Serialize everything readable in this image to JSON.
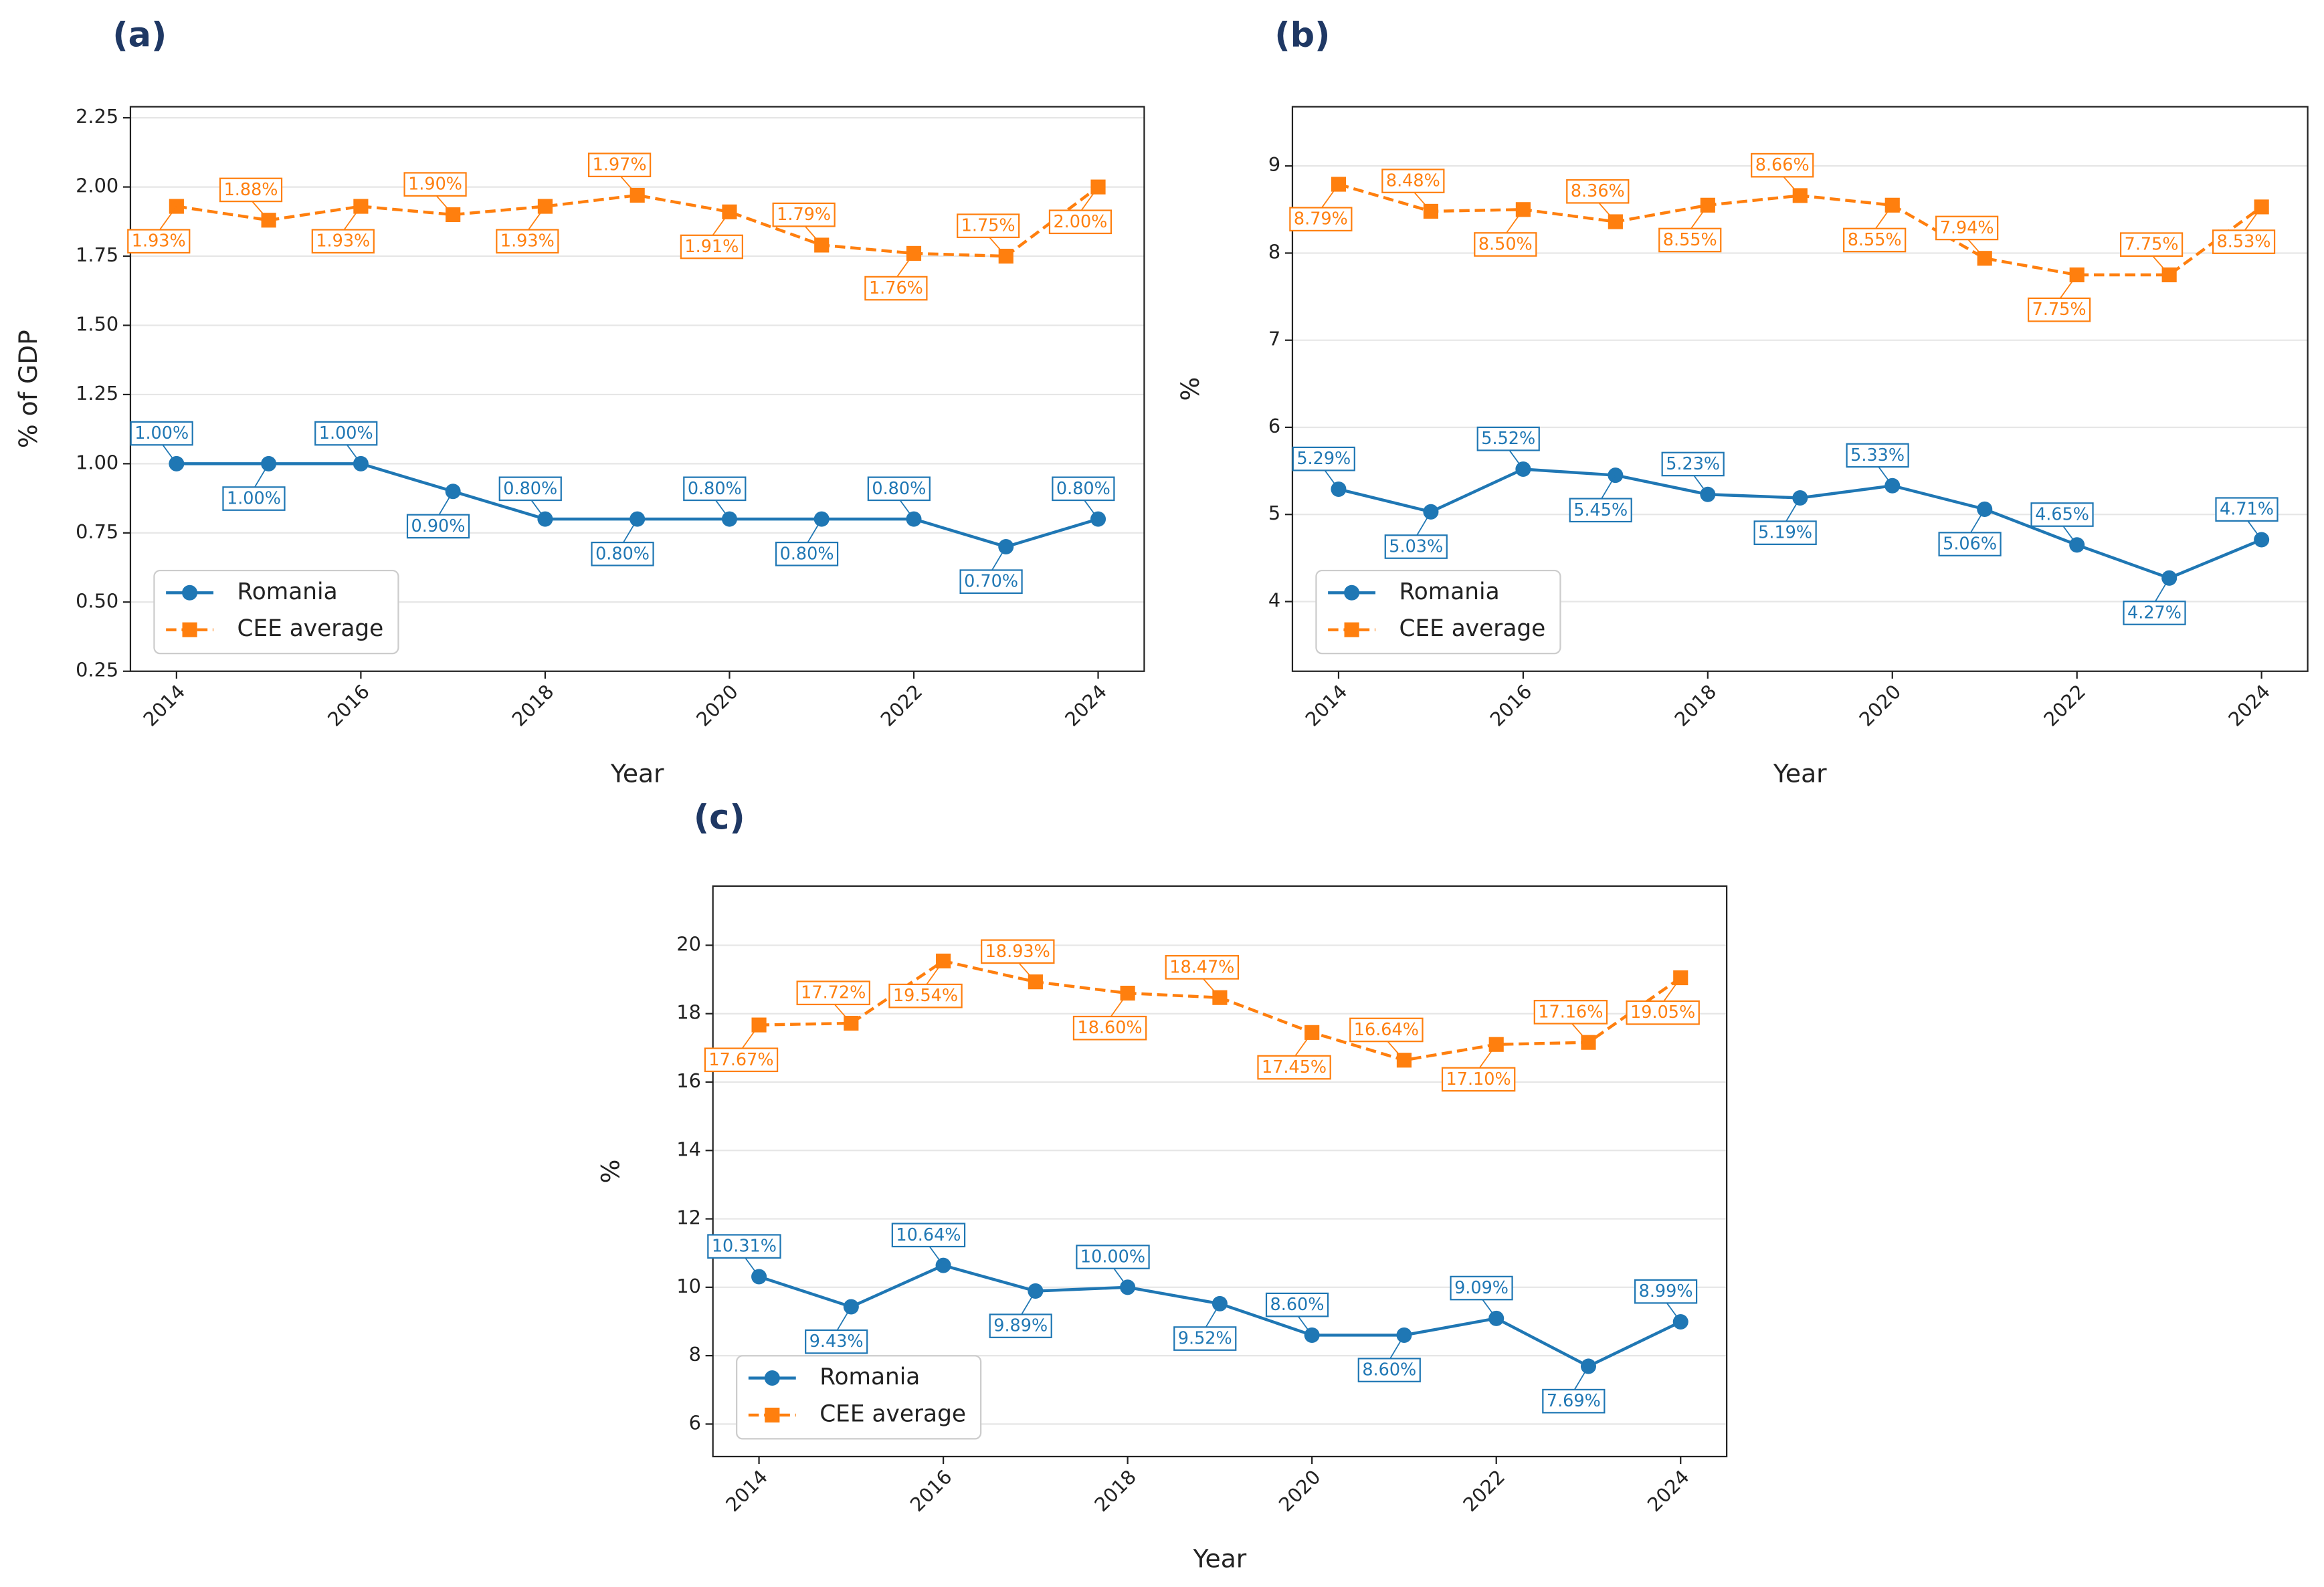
{
  "chart_data": [
    {
      "type": "line",
      "panel": "(a)",
      "xlabel": "Year",
      "ylabel": "% of GDP",
      "x": [
        2014,
        2015,
        2016,
        2017,
        2018,
        2019,
        2020,
        2021,
        2022,
        2023,
        2024
      ],
      "xlim": [
        2013.5,
        2024.5
      ],
      "xticks": [
        2014,
        2016,
        2018,
        2020,
        2022,
        2024
      ],
      "ylim": [
        0.25,
        2.29
      ],
      "yticks": [
        0.25,
        {
          "value": 0.5,
          "label": "0.50"
        },
        0.75,
        {
          "value": 1,
          "label": "1.00"
        },
        1.25,
        {
          "value": 1.5,
          "label": "1.50"
        },
        1.75,
        {
          "value": 2,
          "label": "2.00"
        },
        2.25
      ],
      "grid": true,
      "legend": "lower left",
      "series": [
        {
          "name": "Romania",
          "color": "#1f77b4",
          "linestyle": "solid",
          "marker": "circle",
          "values": [
            1.0,
            1.0,
            1.0,
            0.9,
            0.8,
            0.8,
            0.8,
            0.8,
            0.8,
            0.7,
            0.8
          ],
          "value_labels": [
            "1.00%",
            "1.00%",
            "1.00%",
            "0.90%",
            "0.80%",
            "0.80%",
            "0.80%",
            "0.80%",
            "0.80%",
            "0.70%",
            "0.80%"
          ]
        },
        {
          "name": "CEE average",
          "color": "#ff7f0e",
          "linestyle": "dashed",
          "marker": "square",
          "values": [
            1.93,
            1.88,
            1.93,
            1.9,
            1.93,
            1.97,
            1.91,
            1.79,
            1.76,
            1.75,
            2.0
          ],
          "value_labels": [
            "1.93%",
            "1.88%",
            "1.93%",
            "1.90%",
            "1.93%",
            "1.97%",
            "1.91%",
            "1.79%",
            "1.76%",
            "1.75%",
            "2.00%"
          ]
        }
      ]
    },
    {
      "type": "line",
      "panel": "(b)",
      "xlabel": "Year",
      "ylabel": "%",
      "x": [
        2014,
        2015,
        2016,
        2017,
        2018,
        2019,
        2020,
        2021,
        2022,
        2023,
        2024
      ],
      "xlim": [
        2013.5,
        2024.5
      ],
      "xticks": [
        2014,
        2016,
        2018,
        2020,
        2022,
        2024
      ],
      "ylim": [
        3.2,
        9.68
      ],
      "yticks": [
        4,
        5,
        6,
        7,
        8,
        9
      ],
      "grid": true,
      "legend": "lower left",
      "series": [
        {
          "name": "Romania",
          "color": "#1f77b4",
          "linestyle": "solid",
          "marker": "circle",
          "values": [
            5.29,
            5.03,
            5.52,
            5.45,
            5.23,
            5.19,
            5.33,
            5.06,
            4.65,
            4.27,
            4.71
          ],
          "value_labels": [
            "5.29%",
            "5.03%",
            "5.52%",
            "5.45%",
            "5.23%",
            "5.19%",
            "5.33%",
            "5.06%",
            "4.65%",
            "4.27%",
            "4.71%"
          ]
        },
        {
          "name": "CEE average",
          "color": "#ff7f0e",
          "linestyle": "dashed",
          "marker": "square",
          "values": [
            8.79,
            8.48,
            8.5,
            8.36,
            8.55,
            8.66,
            8.55,
            7.94,
            7.75,
            7.75,
            8.53
          ],
          "value_labels": [
            "8.79%",
            "8.48%",
            "8.50%",
            "8.36%",
            "8.55%",
            "8.66%",
            "8.55%",
            "7.94%",
            "7.75%",
            "7.75%",
            "8.53%"
          ]
        }
      ]
    },
    {
      "type": "line",
      "panel": "(c)",
      "xlabel": "Year",
      "ylabel": "%",
      "x": [
        2014,
        2015,
        2016,
        2017,
        2018,
        2019,
        2020,
        2021,
        2022,
        2023,
        2024
      ],
      "xlim": [
        2013.5,
        2024.5
      ],
      "xticks": [
        2014,
        2016,
        2018,
        2020,
        2022,
        2024
      ],
      "ylim": [
        5.05,
        21.73
      ],
      "yticks": [
        6,
        8,
        10,
        12,
        14,
        16,
        18,
        20
      ],
      "grid": true,
      "legend": "lower left",
      "series": [
        {
          "name": "Romania",
          "color": "#1f77b4",
          "linestyle": "solid",
          "marker": "circle",
          "values": [
            10.31,
            9.43,
            10.64,
            9.89,
            10.0,
            9.52,
            8.6,
            8.6,
            9.09,
            7.69,
            8.99
          ],
          "value_labels": [
            "10.31%",
            "9.43%",
            "10.64%",
            "9.89%",
            "10.00%",
            "9.52%",
            "8.60%",
            "8.60%",
            "9.09%",
            "7.69%",
            "8.99%"
          ]
        },
        {
          "name": "CEE average",
          "color": "#ff7f0e",
          "linestyle": "dashed",
          "marker": "square",
          "values": [
            17.67,
            17.72,
            19.54,
            18.93,
            18.6,
            18.47,
            17.45,
            16.64,
            17.1,
            17.16,
            19.05
          ],
          "value_labels": [
            "17.67%",
            "17.72%",
            "19.54%",
            "18.93%",
            "18.60%",
            "18.47%",
            "17.45%",
            "16.64%",
            "17.10%",
            "17.16%",
            "19.05%"
          ]
        }
      ]
    }
  ]
}
